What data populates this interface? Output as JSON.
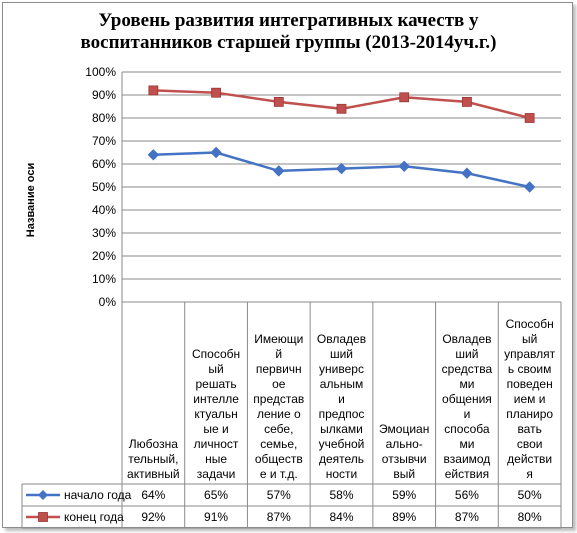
{
  "chart_data": {
    "type": "line",
    "title": "Уровень развития интегративных качеств у воспитанников старшей группы (2013-2014уч.г.)",
    "ylabel": "Название оси",
    "xlabel": "",
    "ylim": [
      0,
      1
    ],
    "y_ticks": [
      "0%",
      "10%",
      "20%",
      "30%",
      "40%",
      "50%",
      "60%",
      "70%",
      "80%",
      "90%",
      "100%"
    ],
    "grid": true,
    "legend": "data-table rows below plot",
    "categories": [
      "Любозна\nтельный,\nактивный",
      "Способн\nый\nрешать\nинтелле\nктуальн\nые и\nличност\nные\nзадачи",
      "Имеющи\nй\nпервичн\nое\nпредстав\nление о\nсебе,\nсемье,\nобществ\nе и т.д.",
      "Овладев\nший\nуниверс\nальным\nи\nпредпос\nылками\nучебной\nдеятель\nности",
      "Эмоциан\nально-\nотзывчи\nвый",
      "Овладев\nший\nсредства\nми\nобщения\nи\nспособа\nми\nвзаимод\nействия",
      "Способн\nый\nуправлят\nь своим\nповеден\nием и\nпланиро\nвать\nсвои\nдействи\nя"
    ],
    "series": [
      {
        "name": "начало года",
        "color": "#4472c4",
        "marker": "diamond",
        "values": [
          0.64,
          0.65,
          0.57,
          0.58,
          0.59,
          0.56,
          0.5
        ],
        "labels": [
          "64%",
          "65%",
          "57%",
          "58%",
          "59%",
          "56%",
          "50%"
        ]
      },
      {
        "name": "конец года",
        "color": "#c0504d",
        "marker": "square",
        "values": [
          0.92,
          0.91,
          0.87,
          0.84,
          0.89,
          0.87,
          0.8
        ],
        "labels": [
          "92%",
          "91%",
          "87%",
          "84%",
          "89%",
          "87%",
          "80%"
        ]
      }
    ]
  }
}
